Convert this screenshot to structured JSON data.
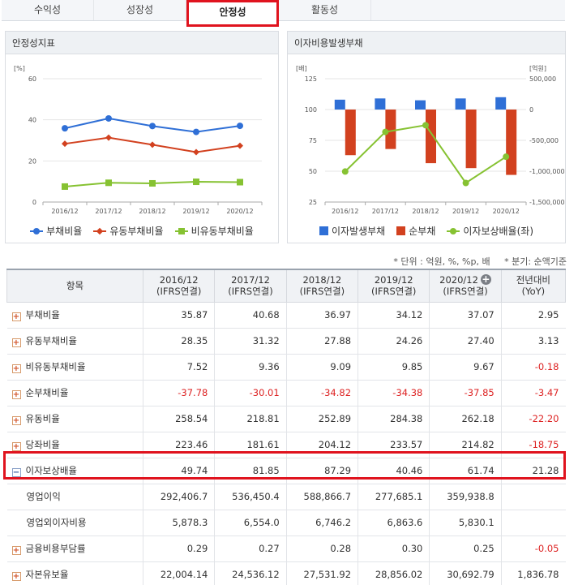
{
  "tabs": [
    {
      "label": "수익성"
    },
    {
      "label": "성장성"
    },
    {
      "label": "안정성",
      "active": true
    },
    {
      "label": "활동성"
    }
  ],
  "left_panel": {
    "title": "안정성지표"
  },
  "right_panel": {
    "title": "이자비용발생부채"
  },
  "notes": {
    "unit": "* 단위 : 억원, %, %p, 배",
    "period": "* 분기: 순액기준"
  },
  "chart_data": [
    {
      "type": "line",
      "title": "안정성지표",
      "ylabel": "[%]",
      "ylim": [
        0,
        60
      ],
      "yticks": [
        0,
        20,
        40,
        60
      ],
      "categories": [
        "2016/12",
        "2017/12",
        "2018/12",
        "2019/12",
        "2020/12"
      ],
      "legend_position": "bottom",
      "grid": "horizontal",
      "series": [
        {
          "name": "부채비율",
          "color": "#2f6fd6",
          "marker": "circle",
          "values": [
            35.87,
            40.68,
            36.97,
            34.12,
            37.07
          ]
        },
        {
          "name": "유동부채비율",
          "color": "#d2411f",
          "marker": "diamond",
          "values": [
            28.35,
            31.32,
            27.88,
            24.26,
            27.4
          ]
        },
        {
          "name": "비유동부채비율",
          "color": "#86c232",
          "marker": "square",
          "values": [
            7.52,
            9.36,
            9.09,
            9.85,
            9.67
          ]
        }
      ]
    },
    {
      "type": "bar",
      "title": "이자비용발생부채",
      "ylabel_left": "[배]",
      "ylabel_right": "[억원]",
      "ylim_left": [
        25,
        125
      ],
      "yticks_left": [
        25,
        50,
        75,
        100,
        125
      ],
      "ylim_right": [
        -1500000,
        500000
      ],
      "yticks_right": [
        "500,000",
        "0",
        "-500,000",
        "-1,000,000",
        "-1,500,000"
      ],
      "yticks_right_values": [
        500000,
        0,
        -500000,
        -1000000,
        -1500000
      ],
      "categories": [
        "2016/12",
        "2017/12",
        "2018/12",
        "2019/12",
        "2020/12"
      ],
      "legend_position": "bottom",
      "grid": "horizontal",
      "series": [
        {
          "name": "이자발생부채",
          "type": "bar",
          "axis": "right",
          "color": "#2f6fd6",
          "values": [
            160000,
            180000,
            150000,
            180000,
            200000
          ]
        },
        {
          "name": "순부채",
          "type": "bar",
          "axis": "right",
          "color": "#d2411f",
          "values": [
            -740000,
            -640000,
            -870000,
            -950000,
            -1060000
          ]
        },
        {
          "name": "이자보상배율(좌)",
          "type": "line",
          "axis": "left",
          "color": "#86c232",
          "values": [
            49.74,
            81.85,
            87.29,
            40.46,
            61.74
          ]
        }
      ]
    }
  ],
  "table": {
    "headers": [
      {
        "line1": "항목",
        "line2": ""
      },
      {
        "line1": "2016/12",
        "line2": "(IFRS연결)"
      },
      {
        "line1": "2017/12",
        "line2": "(IFRS연결)"
      },
      {
        "line1": "2018/12",
        "line2": "(IFRS연결)"
      },
      {
        "line1": "2019/12",
        "line2": "(IFRS연결)"
      },
      {
        "line1": "2020/12",
        "line2": "(IFRS연결)"
      },
      {
        "line1": "전년대비",
        "line2": "(YoY)"
      }
    ],
    "rows": [
      {
        "label": "부채비율",
        "expand": "plus",
        "values": [
          "35.87",
          "40.68",
          "36.97",
          "34.12",
          "37.07",
          "2.95"
        ]
      },
      {
        "label": "유동부채비율",
        "expand": "plus",
        "values": [
          "28.35",
          "31.32",
          "27.88",
          "24.26",
          "27.40",
          "3.13"
        ]
      },
      {
        "label": "비유동부채비율",
        "expand": "plus",
        "values": [
          "7.52",
          "9.36",
          "9.09",
          "9.85",
          "9.67",
          "-0.18"
        ]
      },
      {
        "label": "순부채비율",
        "expand": "plus",
        "values": [
          "-37.78",
          "-30.01",
          "-34.82",
          "-34.38",
          "-37.85",
          "-3.47"
        ]
      },
      {
        "label": "유동비율",
        "expand": "plus",
        "values": [
          "258.54",
          "218.81",
          "252.89",
          "284.38",
          "262.18",
          "-22.20"
        ]
      },
      {
        "label": "당좌비율",
        "expand": "plus",
        "values": [
          "223.46",
          "181.61",
          "204.12",
          "233.57",
          "214.82",
          "-18.75"
        ]
      },
      {
        "label": "이자보상배율",
        "expand": "minus",
        "values": [
          "49.74",
          "81.85",
          "87.29",
          "40.46",
          "61.74",
          "21.28"
        ]
      },
      {
        "label": "영업이익",
        "expand": "none",
        "values": [
          "292,406.7",
          "536,450.4",
          "588,866.7",
          "277,685.1",
          "359,938.8",
          ""
        ]
      },
      {
        "label": "영업외이자비용",
        "expand": "none",
        "values": [
          "5,878.3",
          "6,554.0",
          "6,746.2",
          "6,863.6",
          "5,830.1",
          ""
        ]
      },
      {
        "label": "금융비용부담률",
        "expand": "plus",
        "values": [
          "0.29",
          "0.27",
          "0.28",
          "0.30",
          "0.25",
          "-0.05"
        ]
      },
      {
        "label": "자본유보율",
        "expand": "plus",
        "values": [
          "22,004.14",
          "24,536.12",
          "27,531.92",
          "28,856.02",
          "30,692.79",
          "1,836.78"
        ]
      }
    ]
  }
}
